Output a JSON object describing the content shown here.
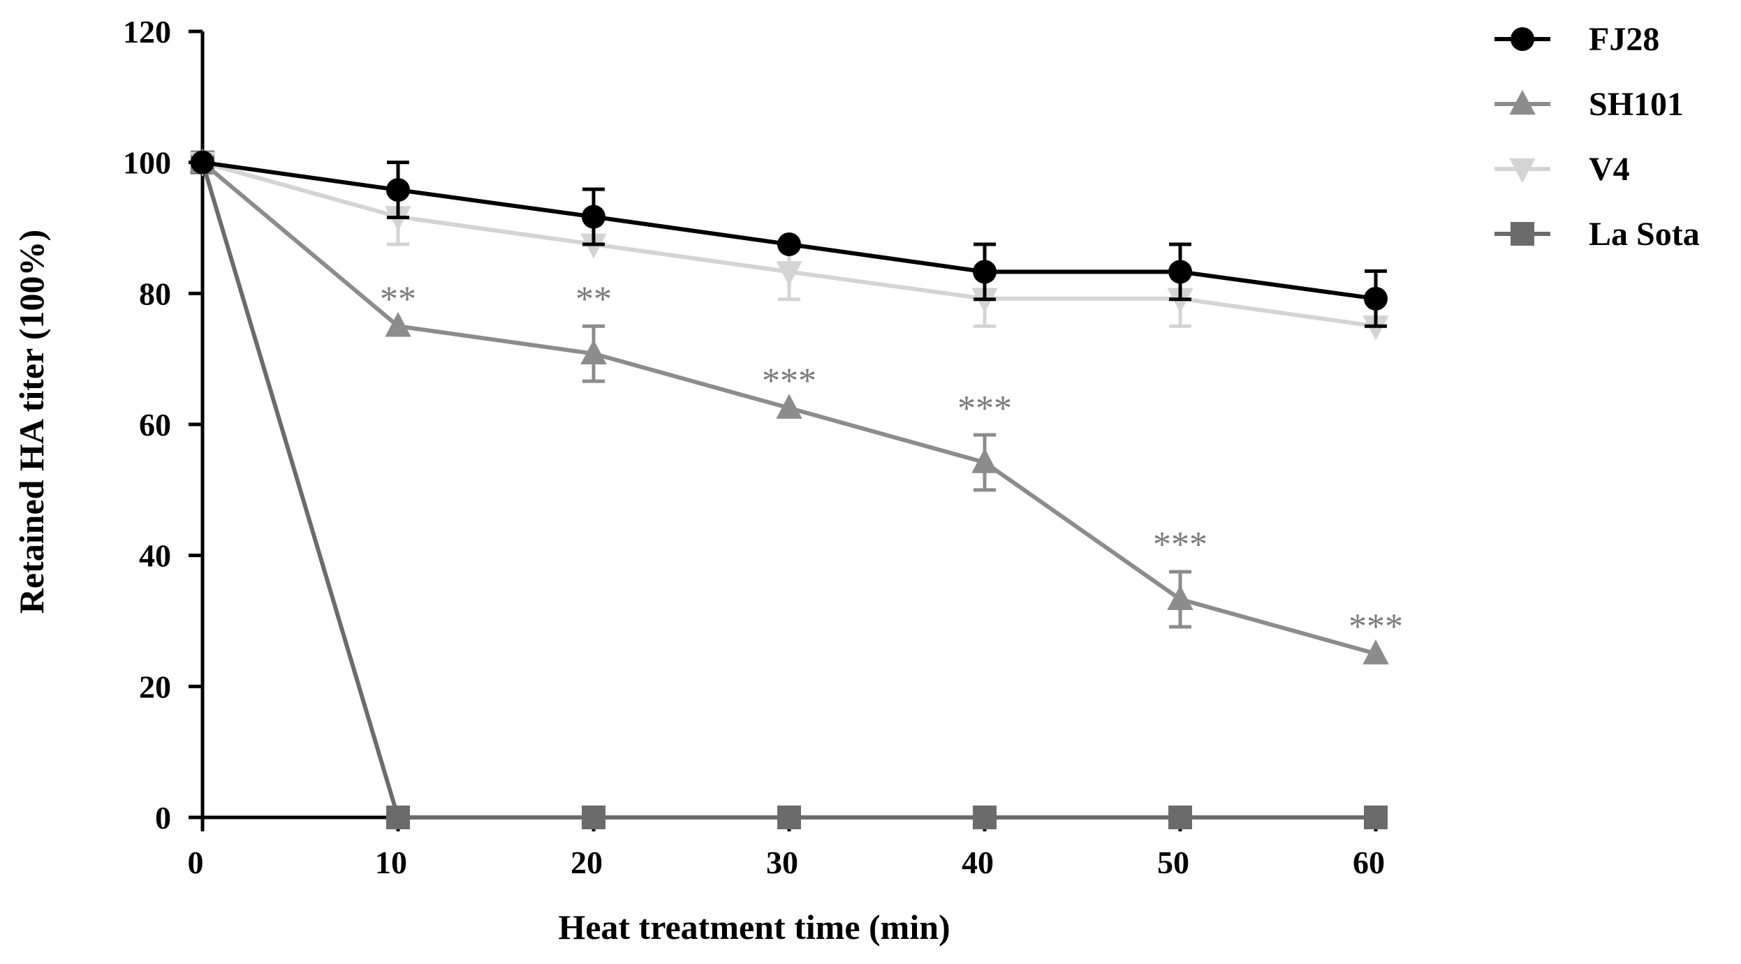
{
  "chart_data": {
    "type": "line",
    "title": "",
    "xlabel": "Heat treatment time (min)",
    "ylabel": "Retained HA titer (100%)",
    "xlim": [
      0,
      60
    ],
    "ylim": [
      0,
      120
    ],
    "x_ticks": [
      0,
      10,
      20,
      30,
      40,
      50,
      60
    ],
    "y_ticks": [
      0,
      20,
      40,
      60,
      80,
      100,
      120
    ],
    "grid": false,
    "legend_position": "top-right",
    "x": [
      0,
      10,
      20,
      30,
      40,
      50,
      60
    ],
    "series": [
      {
        "name": "FJ28",
        "marker": "circle",
        "color": "#000000",
        "values": [
          100,
          95.8,
          91.7,
          87.5,
          83.3,
          83.3,
          79.2
        ],
        "errors": [
          0,
          4.2,
          4.2,
          0,
          4.2,
          4.2,
          4.2
        ]
      },
      {
        "name": "SH101",
        "marker": "triangle-up",
        "color": "#8c8c8c",
        "values": [
          100,
          75,
          70.8,
          62.5,
          54.2,
          33.3,
          25
        ],
        "errors": [
          0,
          0,
          4.2,
          0,
          4.2,
          4.2,
          0
        ]
      },
      {
        "name": "V4",
        "marker": "triangle-down",
        "color": "#d4d4d4",
        "values": [
          100,
          91.7,
          87.5,
          83.3,
          79.2,
          79.2,
          75
        ],
        "errors": [
          0,
          4.2,
          0,
          4.2,
          4.2,
          4.2,
          0
        ]
      },
      {
        "name": "La Sota",
        "marker": "square",
        "color": "#6b6b6b",
        "values": [
          100,
          0,
          0,
          0,
          0,
          0,
          0
        ],
        "errors": [
          0,
          0,
          0,
          0,
          0,
          0,
          0
        ]
      }
    ],
    "annotations": [
      {
        "x": 10,
        "y": 75,
        "text": "**"
      },
      {
        "x": 20,
        "y": 75,
        "text": "**"
      },
      {
        "x": 30,
        "y": 62.5,
        "text": "***"
      },
      {
        "x": 40,
        "y": 58.3,
        "text": "***"
      },
      {
        "x": 50,
        "y": 37.5,
        "text": "***"
      },
      {
        "x": 60,
        "y": 25,
        "text": "***"
      }
    ],
    "annotation_color": "#7a7a7a"
  }
}
